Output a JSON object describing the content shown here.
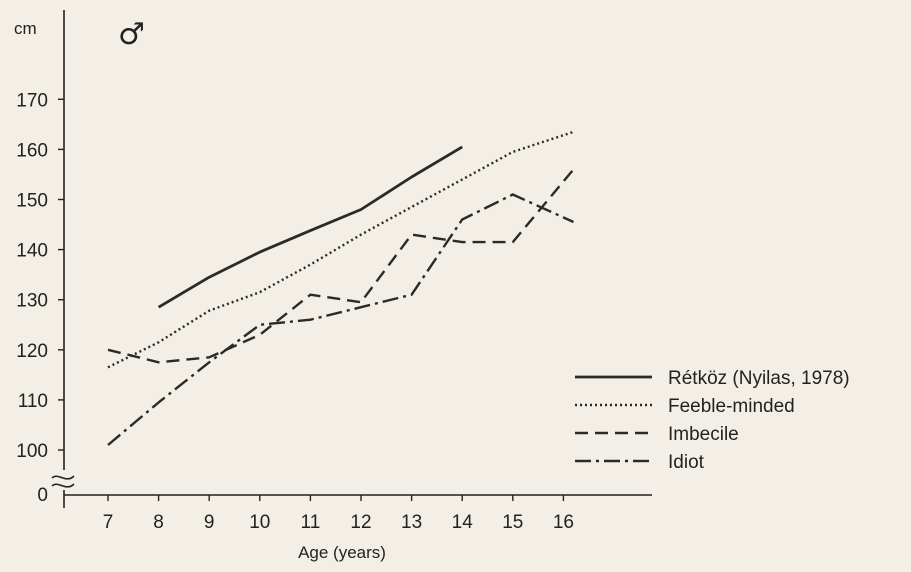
{
  "chart_data": {
    "type": "line",
    "title": "",
    "symbol": "♂",
    "xlabel": "Age (years)",
    "ylabel": "cm",
    "x_ticks": [
      7,
      8,
      9,
      10,
      11,
      12,
      13,
      14,
      15,
      16
    ],
    "y_ticks": [
      100,
      110,
      120,
      130,
      140,
      150,
      160,
      170
    ],
    "y_zero_label": "0",
    "ylim": [
      100,
      170
    ],
    "xlim": [
      7,
      16
    ],
    "axis_break": true,
    "grid": false,
    "legend_position": "right",
    "series": [
      {
        "name": "Rétköz (Nyilas, 1978)",
        "style": "solid",
        "x": [
          8,
          9,
          10,
          11,
          12,
          13,
          14
        ],
        "values": [
          128.5,
          134.5,
          139.5,
          143.8,
          148,
          154.5,
          160.5
        ]
      },
      {
        "name": "Feeble-minded",
        "style": "dotted",
        "x": [
          7,
          8,
          9,
          10,
          11,
          12,
          13,
          14,
          15,
          16.2
        ],
        "values": [
          116.5,
          121.5,
          127.8,
          131.5,
          137,
          143,
          148.5,
          154,
          159.5,
          163.5
        ]
      },
      {
        "name": "Imbecile",
        "style": "dashed",
        "x": [
          7,
          8,
          9,
          10,
          11,
          12,
          13,
          14,
          15,
          16.2
        ],
        "values": [
          120,
          117.5,
          118.5,
          123,
          131,
          129.5,
          143,
          141.5,
          141.5,
          156
        ]
      },
      {
        "name": "Idiot",
        "style": "dashdot",
        "x": [
          7,
          8,
          9,
          10,
          11,
          12,
          13,
          14,
          15,
          16.2
        ],
        "values": [
          101,
          109.5,
          117.5,
          125,
          126,
          128.5,
          131,
          146,
          151,
          145.5
        ]
      }
    ]
  }
}
